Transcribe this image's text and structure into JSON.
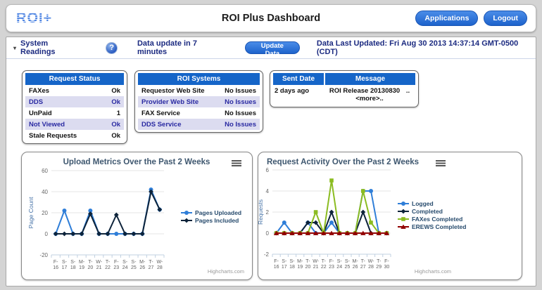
{
  "header": {
    "logo": "ROI+",
    "title": "ROI Plus Dashboard",
    "applications_button": "Applications",
    "logout_button": "Logout"
  },
  "toolbar": {
    "section": "System Readings",
    "help_icon": "?",
    "countdown": "Data update in 7  minutes",
    "update_button": "Update Data",
    "last_updated": "Data Last Updated:  Fri Aug 30 2013 14:37:14 GMT-0500 (CDT)"
  },
  "tables": {
    "request_status": {
      "title": "Request Status",
      "rows": [
        {
          "label": "FAXes",
          "value": "Ok"
        },
        {
          "label": "DDS",
          "value": "Ok"
        },
        {
          "label": "UnPaid",
          "value": "1"
        },
        {
          "label": "Not Viewed",
          "value": "Ok"
        },
        {
          "label": "Stale Requests",
          "value": "Ok"
        }
      ]
    },
    "roi_systems": {
      "title": "ROI Systems",
      "rows": [
        {
          "label": "Requestor Web Site",
          "value": "No Issues"
        },
        {
          "label": "Provider Web Site",
          "value": "No Issues"
        },
        {
          "label": "FAX Service",
          "value": "No Issues"
        },
        {
          "label": "DDS Service",
          "value": "No Issues"
        }
      ]
    },
    "messages": {
      "headers": [
        "Sent Date",
        "Message"
      ],
      "rows": [
        {
          "sent": "2 days ago",
          "message": "ROI Release 20130830",
          "more": "..<more>.."
        }
      ]
    }
  },
  "chart_data": [
    {
      "type": "line",
      "title": "Upload Metrics Over the Past 2 Weeks",
      "ylabel": "Page Count",
      "xlabel": "",
      "categories": [
        "F-16",
        "S-17",
        "S-18",
        "M-19",
        "T-20",
        "W-21",
        "T-22",
        "F-23",
        "S-24",
        "S-25",
        "M-26",
        "T-27",
        "W-28"
      ],
      "ylim": [
        -20,
        60
      ],
      "yticks": [
        -20,
        0,
        20,
        40,
        60
      ],
      "grid": true,
      "legend_position": "right",
      "credits": "Highcharts.com",
      "series": [
        {
          "name": "Pages Uploaded",
          "color": "#2f7ed8",
          "marker": "circle",
          "values": [
            0,
            22,
            0,
            0,
            22,
            0,
            0,
            0,
            0,
            0,
            0,
            42,
            23
          ]
        },
        {
          "name": "Pages Included",
          "color": "#0d233a",
          "marker": "diamond",
          "values": [
            0,
            0,
            0,
            0,
            19,
            0,
            0,
            18,
            0,
            0,
            0,
            40,
            23
          ]
        }
      ]
    },
    {
      "type": "line",
      "title": "Request Activity Over the Past 2 Weeks",
      "ylabel": "Requests",
      "xlabel": "",
      "categories": [
        "F-16",
        "S-17",
        "S-18",
        "M-19",
        "T-20",
        "W-21",
        "T-22",
        "F-23",
        "S-24",
        "S-25",
        "M-26",
        "T-27",
        "W-28",
        "T-29",
        "F-30"
      ],
      "ylim": [
        -2,
        6
      ],
      "yticks": [
        -2,
        0,
        2,
        4,
        6
      ],
      "grid": true,
      "legend_position": "right",
      "credits": "Highcharts.com",
      "series": [
        {
          "name": "Logged",
          "color": "#2f7ed8",
          "marker": "circle",
          "values": [
            0,
            1,
            0,
            0,
            1,
            0,
            0,
            1,
            0,
            0,
            0,
            4,
            4,
            0,
            0
          ]
        },
        {
          "name": "Completed",
          "color": "#0d233a",
          "marker": "diamond",
          "values": [
            0,
            0,
            0,
            0,
            1,
            1,
            0,
            2,
            0,
            0,
            0,
            2,
            0,
            0,
            0
          ]
        },
        {
          "name": "FAXes Completed",
          "color": "#8bbc21",
          "marker": "square",
          "values": [
            0,
            0,
            0,
            0,
            0,
            2,
            0,
            5,
            0,
            0,
            0,
            4,
            1,
            0,
            0
          ]
        },
        {
          "name": "EREWS Completed",
          "color": "#910000",
          "marker": "triangle",
          "values": [
            0,
            0,
            0,
            0,
            0,
            0,
            0,
            0,
            0,
            0,
            0,
            0,
            0,
            0,
            0
          ]
        }
      ]
    }
  ],
  "colors": {
    "table_header": "#1565c8",
    "row_alt_bg": "#dcdcf0",
    "row_alt_text": "#2a2aa2",
    "accent_blue": "#1d63cc",
    "toolbar_text": "#1b2a80",
    "chart_title": "#3e576f",
    "axis_title": "#4572a7",
    "legend_text": "#274b6d"
  }
}
